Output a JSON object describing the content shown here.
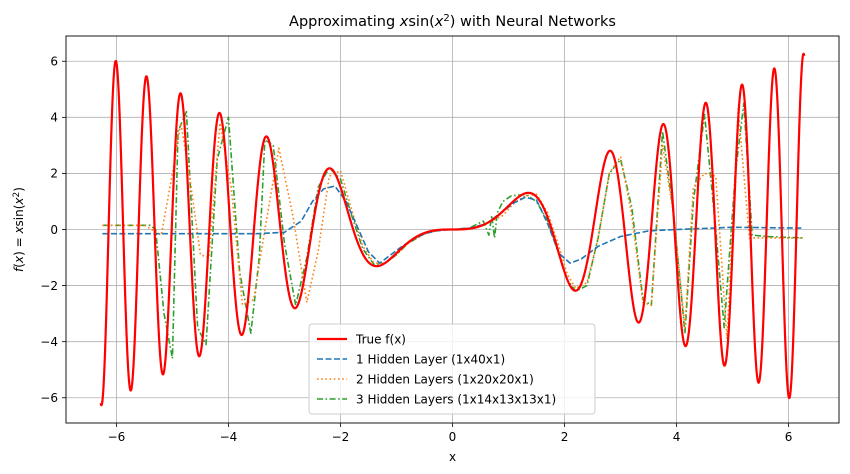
{
  "chart_data": {
    "type": "line",
    "title": "Approximating x sin(x²) with Neural Networks",
    "xlabel": "x",
    "ylabel": "f(x) = x sin(x²)",
    "xlim": [
      -6.9,
      6.9
    ],
    "ylim": [
      -6.9,
      6.9
    ],
    "xticks": [
      -6,
      -4,
      -2,
      0,
      2,
      4,
      6
    ],
    "yticks": [
      -6,
      -4,
      -2,
      0,
      2,
      4,
      6
    ],
    "grid": true,
    "legend_position": "lower center",
    "series": [
      {
        "name": "True f(x)",
        "color": "#ff0000",
        "linestyle": "solid",
        "function": "x*sin(x^2)",
        "x_range": [
          -6.28,
          6.28
        ]
      },
      {
        "name": "1 Hidden Layer (1x40x1)",
        "color": "#1f77b4",
        "linestyle": "dashed",
        "x": [
          -6.25,
          -5.5,
          -4.5,
          -3.5,
          -3.0,
          -2.7,
          -2.5,
          -2.3,
          -2.1,
          -1.9,
          -1.7,
          -1.5,
          -1.3,
          -1.1,
          -0.9,
          -0.7,
          -0.5,
          -0.3,
          0.0,
          0.3,
          0.6,
          0.9,
          1.1,
          1.3,
          1.5,
          1.7,
          1.9,
          2.1,
          2.3,
          2.6,
          3.0,
          3.5,
          4.0,
          5.0,
          6.25
        ],
        "y": [
          -0.15,
          -0.15,
          -0.15,
          -0.15,
          -0.1,
          0.3,
          1.0,
          1.45,
          1.55,
          1.0,
          0.1,
          -0.8,
          -1.2,
          -0.9,
          -0.6,
          -0.35,
          -0.15,
          -0.05,
          0.0,
          0.05,
          0.2,
          0.65,
          0.95,
          1.15,
          1.05,
          0.2,
          -0.85,
          -1.2,
          -1.05,
          -0.6,
          -0.25,
          -0.05,
          0.0,
          0.08,
          0.05
        ]
      },
      {
        "name": "2 Hidden Layers (1x20x20x1)",
        "color": "#ff7f0e",
        "linestyle": "dotted",
        "x": [
          -6.25,
          -5.5,
          -5.2,
          -5.0,
          -4.85,
          -4.7,
          -4.5,
          -4.35,
          -4.15,
          -3.95,
          -3.75,
          -3.55,
          -3.35,
          -3.1,
          -2.85,
          -2.6,
          -2.4,
          -2.2,
          -2.0,
          -1.8,
          -1.6,
          -1.4,
          -1.2,
          -1.0,
          -0.8,
          -0.5,
          -0.2,
          0.0,
          0.3,
          0.6,
          0.9,
          1.1,
          1.3,
          1.5,
          1.7,
          1.9,
          2.05,
          2.2,
          2.4,
          2.6,
          2.8,
          3.0,
          3.2,
          3.4,
          3.55,
          3.75,
          3.95,
          4.15,
          4.3,
          4.5,
          4.7,
          4.9,
          5.1,
          5.3,
          5.6,
          6.25
        ],
        "y": [
          0.15,
          0.15,
          -0.2,
          2.0,
          3.8,
          2.0,
          -0.9,
          -1.0,
          3.8,
          1.5,
          -2.7,
          -2.5,
          0.0,
          2.9,
          0.5,
          -2.6,
          -0.8,
          1.9,
          2.1,
          0.7,
          -0.6,
          -1.2,
          -1.2,
          -0.9,
          -0.5,
          -0.15,
          0.0,
          0.0,
          0.05,
          0.2,
          0.5,
          0.95,
          1.2,
          1.25,
          0.6,
          -0.6,
          -1.6,
          -2.1,
          -1.9,
          -0.3,
          2.0,
          2.6,
          0.5,
          -2.6,
          -2.7,
          3.0,
          0.5,
          -3.5,
          1.5,
          2.0,
          1.9,
          -3.9,
          4.3,
          -0.3,
          -0.3,
          -0.3
        ]
      },
      {
        "name": "3 Hidden Layers (1x14x13x13x1)",
        "color": "#2ca02c",
        "linestyle": "dashdot",
        "x": [
          -6.25,
          -5.4,
          -5.3,
          -5.15,
          -5.0,
          -4.9,
          -4.75,
          -4.55,
          -4.4,
          -4.2,
          -4.0,
          -3.8,
          -3.6,
          -3.45,
          -3.35,
          -3.2,
          -3.0,
          -2.8,
          -2.6,
          -2.4,
          -2.2,
          -2.0,
          -1.8,
          -1.6,
          -1.4,
          -1.2,
          -1.0,
          -0.8,
          -0.5,
          -0.2,
          0.0,
          0.3,
          0.55,
          0.65,
          0.7,
          0.75,
          0.8,
          0.9,
          1.05,
          1.3,
          1.5,
          1.7,
          1.9,
          2.05,
          2.2,
          2.4,
          2.6,
          2.8,
          3.0,
          3.2,
          3.4,
          3.55,
          3.75,
          3.95,
          4.15,
          4.3,
          4.5,
          4.7,
          4.85,
          5.05,
          5.2,
          5.35,
          5.6,
          6.25
        ],
        "y": [
          0.15,
          0.15,
          0.0,
          -3.0,
          -4.6,
          3.5,
          4.2,
          -3.5,
          -4.1,
          2.5,
          4.0,
          -1.5,
          -3.7,
          -1.0,
          3.2,
          3.0,
          -0.5,
          -2.7,
          -1.0,
          1.5,
          2.2,
          1.8,
          0.5,
          -0.7,
          -1.25,
          -1.2,
          -0.9,
          -0.5,
          -0.15,
          0.0,
          0.0,
          0.05,
          0.3,
          -0.2,
          0.5,
          -0.3,
          0.6,
          1.0,
          1.2,
          1.25,
          1.0,
          0.3,
          -0.9,
          -1.8,
          -2.2,
          -2.0,
          -0.3,
          2.0,
          2.5,
          0.8,
          -2.5,
          -2.7,
          3.5,
          0.5,
          -3.7,
          1.0,
          4.1,
          0.0,
          -3.5,
          2.0,
          4.5,
          -0.2,
          -0.25,
          -0.3
        ]
      }
    ]
  }
}
